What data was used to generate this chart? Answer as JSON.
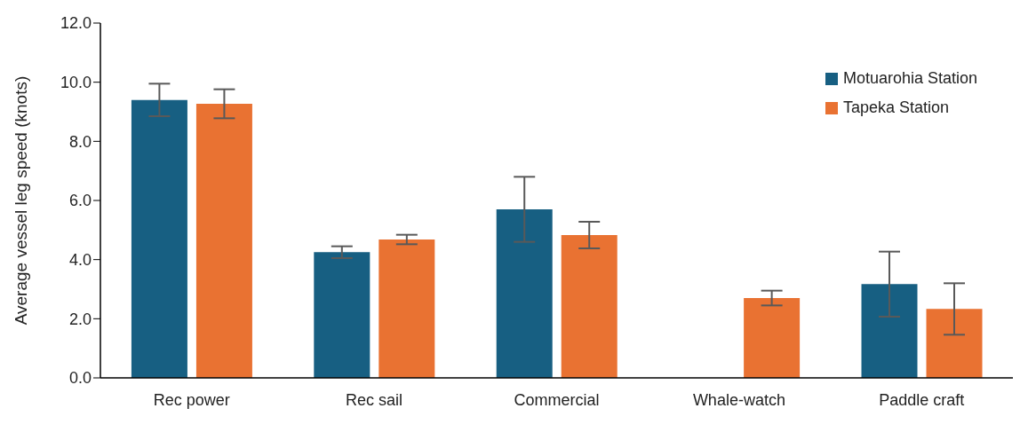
{
  "chart_data": {
    "type": "bar",
    "ylabel": "Average vessel leg speed (knots)",
    "categories": [
      "Rec power",
      "Rec sail",
      "Commercial",
      "Whale-watch",
      "Paddle craft"
    ],
    "series": [
      {
        "name": "Motuarohia Station",
        "color": "#175f82",
        "values": [
          9.4,
          4.25,
          5.7,
          0,
          3.17
        ],
        "errors": [
          0.55,
          0.2,
          1.1,
          null,
          1.1
        ]
      },
      {
        "name": "Tapeka Station",
        "color": "#e97232",
        "values": [
          9.27,
          4.68,
          4.83,
          2.7,
          2.33
        ],
        "errors": [
          0.49,
          0.16,
          0.45,
          0.25,
          0.87
        ]
      }
    ],
    "ylim": [
      0,
      12
    ],
    "yticks": [
      {
        "value": 0,
        "label": "0.0"
      },
      {
        "value": 2,
        "label": "2.0"
      },
      {
        "value": 4,
        "label": "4.0"
      },
      {
        "value": 6,
        "label": "6.0"
      },
      {
        "value": 8,
        "label": "8.0"
      },
      {
        "value": 10,
        "label": "10.0"
      },
      {
        "value": 12,
        "label": "12.0"
      }
    ],
    "grid": false,
    "legend": "top right"
  }
}
